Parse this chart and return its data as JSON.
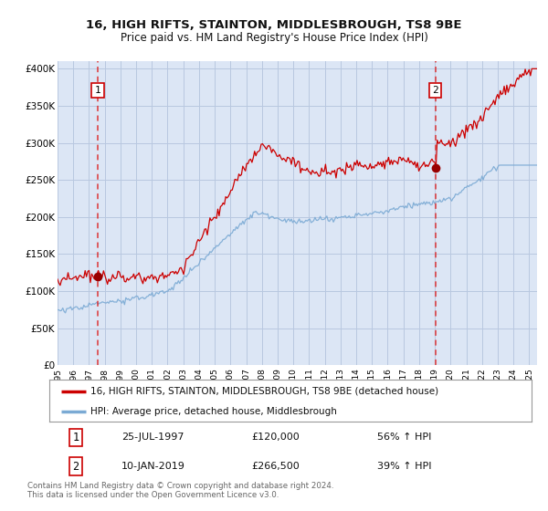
{
  "title1": "16, HIGH RIFTS, STAINTON, MIDDLESBROUGH, TS8 9BE",
  "title2": "Price paid vs. HM Land Registry's House Price Index (HPI)",
  "ylabel_ticks": [
    "£0",
    "£50K",
    "£100K",
    "£150K",
    "£200K",
    "£250K",
    "£300K",
    "£350K",
    "£400K"
  ],
  "ytick_vals": [
    0,
    50000,
    100000,
    150000,
    200000,
    250000,
    300000,
    350000,
    400000
  ],
  "ylim": [
    0,
    410000
  ],
  "xlim_start": 1995.0,
  "xlim_end": 2025.5,
  "fig_bg_color": "#ffffff",
  "plot_bg_color": "#dce6f5",
  "grid_color": "#b8c8e0",
  "red_line_color": "#cc0000",
  "blue_line_color": "#7baad4",
  "marker1_x": 1997.56,
  "marker1_y": 120000,
  "marker2_x": 2019.03,
  "marker2_y": 266500,
  "marker_color": "#990000",
  "dashed_line_color": "#dd2222",
  "label1_num": "1",
  "label2_num": "2",
  "legend_line1": "16, HIGH RIFTS, STAINTON, MIDDLESBROUGH, TS8 9BE (detached house)",
  "legend_line2": "HPI: Average price, detached house, Middlesbrough",
  "table_row1": [
    "1",
    "25-JUL-1997",
    "£120,000",
    "56% ↑ HPI"
  ],
  "table_row2": [
    "2",
    "10-JAN-2019",
    "£266,500",
    "39% ↑ HPI"
  ],
  "footnote": "Contains HM Land Registry data © Crown copyright and database right 2024.\nThis data is licensed under the Open Government Licence v3.0.",
  "xtick_years": [
    1995,
    1996,
    1997,
    1998,
    1999,
    2000,
    2001,
    2002,
    2003,
    2004,
    2005,
    2006,
    2007,
    2008,
    2009,
    2010,
    2011,
    2012,
    2013,
    2014,
    2015,
    2016,
    2017,
    2018,
    2019,
    2020,
    2021,
    2022,
    2023,
    2024,
    2025
  ]
}
